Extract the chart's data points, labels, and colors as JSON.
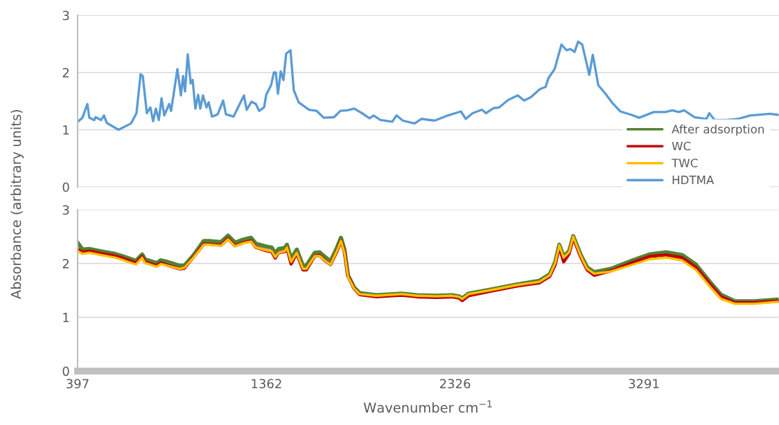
{
  "chart_data": [
    {
      "type": "line",
      "ylabel": "Absorbance (arbitrary units)",
      "xlim": [
        397,
        3980
      ],
      "ylim": [
        0,
        3
      ],
      "yticks": [
        0,
        1,
        2,
        3
      ],
      "grid": "y",
      "tick_labels": "y",
      "line_style": "solid",
      "series": [
        {
          "name": "HDTMA",
          "color": "#5b9bd5",
          "x": [
            397,
            422,
            447,
            457,
            482,
            489,
            517,
            532,
            546,
            606,
            670,
            698,
            719,
            730,
            751,
            769,
            783,
            797,
            812,
            826,
            840,
            865,
            875,
            907,
            925,
            936,
            946,
            960,
            975,
            985,
            999,
            1013,
            1024,
            1038,
            1056,
            1067,
            1084,
            1113,
            1141,
            1155,
            1194,
            1230,
            1247,
            1261,
            1286,
            1308,
            1325,
            1350,
            1361,
            1386,
            1400,
            1410,
            1421,
            1435,
            1449,
            1463,
            1485,
            1502,
            1527,
            1580,
            1619,
            1655,
            1708,
            1740,
            1775,
            1811,
            1850,
            1889,
            1910,
            1945,
            2005,
            2027,
            2059,
            2119,
            2154,
            2222,
            2289,
            2356,
            2381,
            2416,
            2463,
            2484,
            2523,
            2551,
            2597,
            2647,
            2679,
            2714,
            2760,
            2789,
            2803,
            2835,
            2870,
            2895,
            2916,
            2937,
            2955,
            2976,
            3012,
            3030,
            3058,
            3097,
            3132,
            3171,
            3228,
            3267,
            3341,
            3401,
            3437,
            3469,
            3497,
            3550,
            3611,
            3625,
            3653,
            3713,
            3773,
            3834,
            3936,
            3979
          ],
          "values": [
            1.14,
            1.21,
            1.45,
            1.21,
            1.17,
            1.22,
            1.17,
            1.25,
            1.12,
            1.0,
            1.11,
            1.29,
            1.97,
            1.94,
            1.29,
            1.39,
            1.15,
            1.37,
            1.17,
            1.55,
            1.25,
            1.45,
            1.33,
            2.06,
            1.6,
            1.94,
            1.67,
            2.32,
            1.81,
            1.87,
            1.37,
            1.61,
            1.37,
            1.6,
            1.39,
            1.48,
            1.23,
            1.27,
            1.51,
            1.27,
            1.23,
            1.48,
            1.6,
            1.35,
            1.49,
            1.45,
            1.33,
            1.39,
            1.61,
            1.78,
            2.0,
            2.0,
            1.63,
            2.02,
            1.87,
            2.33,
            2.39,
            1.69,
            1.48,
            1.35,
            1.33,
            1.21,
            1.22,
            1.33,
            1.34,
            1.37,
            1.29,
            1.2,
            1.25,
            1.17,
            1.14,
            1.25,
            1.16,
            1.11,
            1.19,
            1.16,
            1.25,
            1.32,
            1.19,
            1.29,
            1.35,
            1.29,
            1.38,
            1.39,
            1.52,
            1.6,
            1.51,
            1.57,
            1.71,
            1.75,
            1.9,
            2.06,
            2.49,
            2.39,
            2.41,
            2.36,
            2.54,
            2.49,
            1.96,
            2.31,
            1.78,
            1.62,
            1.46,
            1.32,
            1.26,
            1.21,
            1.31,
            1.31,
            1.34,
            1.31,
            1.34,
            1.22,
            1.19,
            1.29,
            1.17,
            1.17,
            1.19,
            1.25,
            1.28,
            1.26
          ]
        }
      ]
    },
    {
      "type": "line",
      "xlabel": "Wavenumber cm$^{−1}$",
      "xlim": [
        397,
        3980
      ],
      "xticks": [
        397,
        1362,
        2326,
        3291
      ],
      "ylim": [
        0,
        3
      ],
      "yticks": [
        0,
        1,
        2,
        3
      ],
      "grid": "y",
      "legend": "right",
      "line_style": "solid",
      "x": [
        397,
        422,
        457,
        528,
        588,
        624,
        695,
        727,
        741,
        801,
        822,
        847,
        918,
        943,
        989,
        1042,
        1070,
        1130,
        1166,
        1201,
        1247,
        1283,
        1308,
        1368,
        1389,
        1407,
        1424,
        1456,
        1467,
        1488,
        1517,
        1549,
        1566,
        1609,
        1634,
        1662,
        1690,
        1722,
        1743,
        1761,
        1779,
        1811,
        1839,
        1924,
        2052,
        2133,
        2232,
        2310,
        2346,
        2363,
        2395,
        2516,
        2643,
        2757,
        2810,
        2838,
        2859,
        2881,
        2909,
        2930,
        2966,
        3001,
        3037,
        3121,
        3235,
        3320,
        3405,
        3486,
        3557,
        3628,
        3685,
        3756,
        3855,
        3979
      ],
      "series": [
        {
          "name": "After adsorption",
          "color": "#548235",
          "values": [
            2.39,
            2.26,
            2.27,
            2.22,
            2.18,
            2.14,
            2.05,
            2.17,
            2.08,
            2.01,
            2.06,
            2.04,
            1.96,
            1.96,
            2.15,
            2.42,
            2.42,
            2.4,
            2.52,
            2.39,
            2.45,
            2.48,
            2.37,
            2.31,
            2.3,
            2.19,
            2.27,
            2.29,
            2.35,
            2.09,
            2.26,
            1.96,
            1.96,
            2.2,
            2.21,
            2.12,
            2.04,
            2.29,
            2.48,
            2.26,
            1.78,
            1.55,
            1.45,
            1.41,
            1.44,
            1.41,
            1.4,
            1.41,
            1.39,
            1.35,
            1.44,
            1.52,
            1.61,
            1.68,
            1.8,
            2.03,
            2.35,
            2.13,
            2.23,
            2.51,
            2.18,
            1.93,
            1.84,
            1.9,
            2.06,
            2.17,
            2.21,
            2.16,
            1.98,
            1.66,
            1.42,
            1.3,
            1.3,
            1.33
          ]
        },
        {
          "name": "WC",
          "color": "#c00000",
          "values": [
            2.26,
            2.21,
            2.23,
            2.18,
            2.14,
            2.1,
            2.01,
            2.13,
            2.03,
            1.96,
            2.01,
            1.98,
            1.9,
            1.91,
            2.12,
            2.36,
            2.36,
            2.34,
            2.46,
            2.33,
            2.39,
            2.42,
            2.3,
            2.23,
            2.22,
            2.1,
            2.2,
            2.22,
            2.29,
            1.99,
            2.19,
            1.88,
            1.88,
            2.14,
            2.15,
            2.05,
            1.98,
            2.22,
            2.42,
            2.21,
            1.76,
            1.53,
            1.42,
            1.38,
            1.41,
            1.38,
            1.37,
            1.38,
            1.36,
            1.31,
            1.4,
            1.49,
            1.58,
            1.64,
            1.76,
            1.98,
            2.31,
            2.03,
            2.18,
            2.48,
            2.14,
            1.88,
            1.78,
            1.86,
            2.02,
            2.13,
            2.16,
            2.11,
            1.93,
            1.62,
            1.38,
            1.27,
            1.27,
            1.3
          ]
        },
        {
          "name": "TWC",
          "color": "#ffc000",
          "values": [
            2.23,
            2.18,
            2.2,
            2.15,
            2.11,
            2.07,
            1.98,
            2.11,
            2.01,
            1.94,
            1.99,
            1.97,
            1.9,
            1.92,
            2.11,
            2.35,
            2.35,
            2.33,
            2.45,
            2.32,
            2.38,
            2.41,
            2.3,
            2.24,
            2.23,
            2.12,
            2.2,
            2.23,
            2.3,
            2.03,
            2.2,
            1.9,
            1.9,
            2.14,
            2.14,
            2.05,
            1.98,
            2.23,
            2.42,
            2.2,
            1.75,
            1.53,
            1.43,
            1.4,
            1.43,
            1.4,
            1.39,
            1.4,
            1.38,
            1.34,
            1.43,
            1.51,
            1.6,
            1.66,
            1.78,
            2.01,
            2.34,
            2.11,
            2.21,
            2.5,
            2.16,
            1.9,
            1.81,
            1.85,
            1.98,
            2.08,
            2.11,
            2.06,
            1.88,
            1.57,
            1.34,
            1.25,
            1.25,
            1.29
          ]
        }
      ]
    }
  ]
}
